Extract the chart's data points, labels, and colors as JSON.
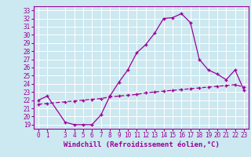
{
  "xlabel": "Windchill (Refroidissement éolien,°C)",
  "xlim": [
    -0.5,
    23.5
  ],
  "ylim": [
    18.5,
    33.5
  ],
  "yticks": [
    19,
    20,
    21,
    22,
    23,
    24,
    25,
    26,
    27,
    28,
    29,
    30,
    31,
    32,
    33
  ],
  "xticks": [
    0,
    1,
    3,
    4,
    5,
    6,
    7,
    8,
    9,
    10,
    11,
    12,
    13,
    14,
    15,
    16,
    17,
    18,
    19,
    20,
    21,
    22,
    23
  ],
  "background_color": "#cce8f0",
  "grid_color": "#aaddee",
  "line_color": "#990099",
  "line1_x": [
    0,
    1,
    3,
    4,
    5,
    6,
    7,
    8,
    9,
    10,
    11,
    12,
    13,
    14,
    15,
    16,
    17,
    18,
    19,
    20,
    21,
    22,
    23
  ],
  "line1_y": [
    22.0,
    22.5,
    19.3,
    19.0,
    19.0,
    19.0,
    20.2,
    22.5,
    24.2,
    25.7,
    27.8,
    28.8,
    30.2,
    32.0,
    32.1,
    32.6,
    31.5,
    27.0,
    25.7,
    25.2,
    24.5,
    25.7,
    23.2
  ],
  "line2_x": [
    0,
    1,
    3,
    4,
    5,
    6,
    7,
    8,
    9,
    10,
    11,
    12,
    13,
    14,
    15,
    16,
    17,
    18,
    19,
    20,
    21,
    22,
    23
  ],
  "line2_y": [
    21.5,
    21.6,
    21.8,
    21.9,
    22.0,
    22.1,
    22.2,
    22.4,
    22.5,
    22.6,
    22.7,
    22.9,
    23.0,
    23.1,
    23.2,
    23.3,
    23.4,
    23.5,
    23.6,
    23.7,
    23.8,
    23.9,
    23.6
  ],
  "fontsize_tick": 5.5,
  "fontsize_xlabel": 6.5
}
